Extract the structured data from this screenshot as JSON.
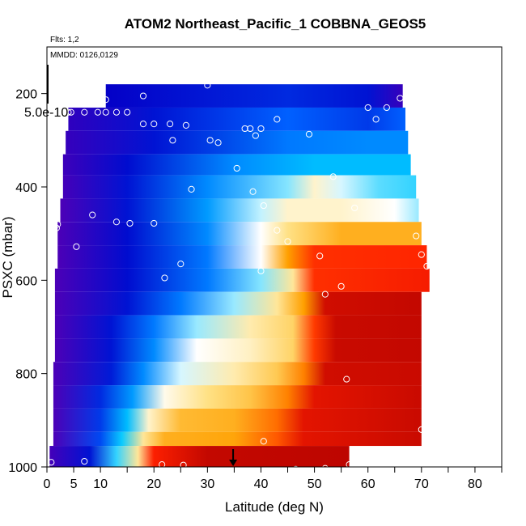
{
  "chart_data": {
    "type": "heatmap",
    "title": "ATOM2 Northeast_Pacific_1 COBBNA_GEOS5",
    "flights_label": "Flts: 1,2",
    "dates_label": "MMDD: 0126,0129",
    "xlabel": "Latitude (deg N)",
    "ylabel": "PSXC (mbar)",
    "xlim": [
      0,
      85
    ],
    "ylim": [
      1000,
      100
    ],
    "x_ticks": [
      0,
      5,
      10,
      20,
      30,
      40,
      50,
      60,
      70,
      80
    ],
    "x_minor_ticks": [
      15,
      25,
      35,
      45,
      55,
      65,
      75,
      85
    ],
    "y_ticks": [
      200,
      400,
      600,
      800,
      1000
    ],
    "colorbar_label": "5.0e-10",
    "arrow_latitude": 34.8,
    "colormap": [
      "#5a00b4",
      "#0000c8",
      "#0060ff",
      "#00c8ff",
      "#ffffff",
      "#ffe080",
      "#ffa000",
      "#ff2000",
      "#b00000"
    ],
    "pressure_bands": [
      {
        "p_top": 180,
        "p_bot": 230,
        "lat_start": 11,
        "lat_end": 66.5,
        "color_stops": [
          [
            0,
            0.12
          ],
          [
            45,
            0.18
          ],
          [
            60,
            0.15
          ],
          [
            66.5,
            0.05
          ]
        ]
      },
      {
        "p_top": 230,
        "p_bot": 280,
        "lat_start": 4,
        "lat_end": 67,
        "color_stops": [
          [
            4,
            0.06
          ],
          [
            20,
            0.15
          ],
          [
            45,
            0.25
          ],
          [
            60,
            0.2
          ],
          [
            67,
            0.25
          ]
        ]
      },
      {
        "p_top": 280,
        "p_bot": 330,
        "lat_start": 3.5,
        "lat_end": 67.5,
        "color_stops": [
          [
            3.5,
            0.05
          ],
          [
            20,
            0.15
          ],
          [
            45,
            0.28
          ],
          [
            60,
            0.3
          ],
          [
            67.5,
            0.3
          ]
        ]
      },
      {
        "p_top": 330,
        "p_bot": 375,
        "lat_start": 3,
        "lat_end": 68,
        "color_stops": [
          [
            3,
            0.04
          ],
          [
            15,
            0.14
          ],
          [
            35,
            0.3
          ],
          [
            50,
            0.36
          ],
          [
            68,
            0.36
          ]
        ]
      },
      {
        "p_top": 375,
        "p_bot": 425,
        "lat_start": 3,
        "lat_end": 69,
        "color_stops": [
          [
            3,
            0.03
          ],
          [
            15,
            0.15
          ],
          [
            30,
            0.3
          ],
          [
            45,
            0.44
          ],
          [
            50,
            0.55
          ],
          [
            55,
            0.48
          ],
          [
            62,
            0.42
          ],
          [
            69,
            0.4
          ]
        ]
      },
      {
        "p_top": 425,
        "p_bot": 475,
        "lat_start": 2.5,
        "lat_end": 69.5,
        "color_stops": [
          [
            2.5,
            0.02
          ],
          [
            15,
            0.15
          ],
          [
            30,
            0.32
          ],
          [
            40,
            0.47
          ],
          [
            45,
            0.55
          ],
          [
            55,
            0.55
          ],
          [
            65,
            0.5
          ],
          [
            69.5,
            0.45
          ]
        ]
      },
      {
        "p_top": 475,
        "p_bot": 525,
        "lat_start": 2,
        "lat_end": 70,
        "color_stops": [
          [
            2,
            0.02
          ],
          [
            15,
            0.14
          ],
          [
            30,
            0.3
          ],
          [
            40,
            0.5
          ],
          [
            45,
            0.62
          ],
          [
            55,
            0.72
          ],
          [
            70,
            0.72
          ]
        ]
      },
      {
        "p_top": 525,
        "p_bot": 575,
        "lat_start": 2,
        "lat_end": 71,
        "color_stops": [
          [
            2,
            0.02
          ],
          [
            15,
            0.14
          ],
          [
            30,
            0.28
          ],
          [
            40,
            0.5
          ],
          [
            45,
            0.75
          ],
          [
            50,
            0.86
          ],
          [
            71,
            0.87
          ]
        ]
      },
      {
        "p_top": 575,
        "p_bot": 625,
        "lat_start": 1.5,
        "lat_end": 71.5,
        "color_stops": [
          [
            1.5,
            0.02
          ],
          [
            15,
            0.14
          ],
          [
            30,
            0.28
          ],
          [
            40,
            0.44
          ],
          [
            46,
            0.6
          ],
          [
            50,
            0.86
          ],
          [
            71.5,
            0.89
          ]
        ]
      },
      {
        "p_top": 625,
        "p_bot": 675,
        "lat_start": 1.5,
        "lat_end": 70,
        "color_stops": [
          [
            1.5,
            0.02
          ],
          [
            15,
            0.15
          ],
          [
            25,
            0.28
          ],
          [
            35,
            0.45
          ],
          [
            43,
            0.6
          ],
          [
            48,
            0.75
          ],
          [
            52,
            0.95
          ],
          [
            70,
            0.97
          ]
        ]
      },
      {
        "p_top": 675,
        "p_bot": 725,
        "lat_start": 1.5,
        "lat_end": 70,
        "color_stops": [
          [
            1.5,
            0.02
          ],
          [
            12,
            0.15
          ],
          [
            20,
            0.28
          ],
          [
            28,
            0.45
          ],
          [
            38,
            0.58
          ],
          [
            46,
            0.65
          ],
          [
            50,
            0.85
          ],
          [
            54,
            0.96
          ],
          [
            70,
            0.97
          ]
        ]
      },
      {
        "p_top": 725,
        "p_bot": 775,
        "lat_start": 1.5,
        "lat_end": 70,
        "color_stops": [
          [
            1.5,
            0.02
          ],
          [
            12,
            0.15
          ],
          [
            20,
            0.3
          ],
          [
            28,
            0.5
          ],
          [
            38,
            0.56
          ],
          [
            46,
            0.65
          ],
          [
            50,
            0.85
          ],
          [
            54,
            0.96
          ],
          [
            70,
            0.97
          ]
        ]
      },
      {
        "p_top": 775,
        "p_bot": 825,
        "lat_start": 1.2,
        "lat_end": 70,
        "color_stops": [
          [
            1.2,
            0.02
          ],
          [
            12,
            0.16
          ],
          [
            18,
            0.3
          ],
          [
            25,
            0.48
          ],
          [
            35,
            0.58
          ],
          [
            43,
            0.67
          ],
          [
            48,
            0.78
          ],
          [
            52,
            0.95
          ],
          [
            70,
            0.96
          ]
        ]
      },
      {
        "p_top": 825,
        "p_bot": 875,
        "lat_start": 1.2,
        "lat_end": 70,
        "color_stops": [
          [
            1.2,
            0.02
          ],
          [
            10,
            0.18
          ],
          [
            16,
            0.32
          ],
          [
            22,
            0.52
          ],
          [
            30,
            0.62
          ],
          [
            38,
            0.68
          ],
          [
            45,
            0.78
          ],
          [
            50,
            0.92
          ],
          [
            70,
            0.96
          ]
        ]
      },
      {
        "p_top": 875,
        "p_bot": 925,
        "lat_start": 1.2,
        "lat_end": 70,
        "color_stops": [
          [
            1.2,
            0.02
          ],
          [
            10,
            0.2
          ],
          [
            15,
            0.36
          ],
          [
            19,
            0.55
          ],
          [
            25,
            0.7
          ],
          [
            35,
            0.72
          ],
          [
            43,
            0.8
          ],
          [
            48,
            0.92
          ],
          [
            70,
            0.96
          ]
        ]
      },
      {
        "p_top": 925,
        "p_bot": 955,
        "lat_start": 1.2,
        "lat_end": 70,
        "color_stops": [
          [
            1.2,
            0.02
          ],
          [
            10,
            0.22
          ],
          [
            14,
            0.38
          ],
          [
            18,
            0.6
          ],
          [
            22,
            0.72
          ],
          [
            35,
            0.74
          ],
          [
            43,
            0.82
          ],
          [
            48,
            0.92
          ],
          [
            70,
            0.96
          ]
        ]
      },
      {
        "p_top": 955,
        "p_bot": 1000,
        "lat_start": 0.5,
        "lat_end": 56.5,
        "color_stops": [
          [
            0.5,
            0.03
          ],
          [
            8,
            0.15
          ],
          [
            13,
            0.4
          ],
          [
            17,
            0.6
          ],
          [
            20,
            0.88
          ],
          [
            30,
            0.97
          ],
          [
            56.5,
            0.98
          ]
        ]
      }
    ],
    "observations": [
      {
        "lat": 11,
        "p": 213
      },
      {
        "lat": 18,
        "p": 205
      },
      {
        "lat": 30,
        "p": 182
      },
      {
        "lat": 4,
        "p": 240
      },
      {
        "lat": 4.5,
        "p": 240
      },
      {
        "lat": 7,
        "p": 240
      },
      {
        "lat": 9.5,
        "p": 240
      },
      {
        "lat": 11,
        "p": 240
      },
      {
        "lat": 13,
        "p": 240
      },
      {
        "lat": 15,
        "p": 240
      },
      {
        "lat": 18,
        "p": 265
      },
      {
        "lat": 20,
        "p": 265
      },
      {
        "lat": 23,
        "p": 265
      },
      {
        "lat": 26,
        "p": 268
      },
      {
        "lat": 23.5,
        "p": 300
      },
      {
        "lat": 30.5,
        "p": 300
      },
      {
        "lat": 32,
        "p": 305
      },
      {
        "lat": 37,
        "p": 275
      },
      {
        "lat": 38,
        "p": 275
      },
      {
        "lat": 40,
        "p": 275
      },
      {
        "lat": 39,
        "p": 290
      },
      {
        "lat": 43,
        "p": 255
      },
      {
        "lat": 49,
        "p": 287
      },
      {
        "lat": 60,
        "p": 230
      },
      {
        "lat": 61.5,
        "p": 255
      },
      {
        "lat": 63.5,
        "p": 230
      },
      {
        "lat": 66,
        "p": 210
      },
      {
        "lat": 35.5,
        "p": 360
      },
      {
        "lat": 27,
        "p": 405
      },
      {
        "lat": 38.5,
        "p": 410
      },
      {
        "lat": 40.5,
        "p": 440
      },
      {
        "lat": 53.5,
        "p": 378
      },
      {
        "lat": 57.5,
        "p": 445
      },
      {
        "lat": 8.5,
        "p": 460
      },
      {
        "lat": 13,
        "p": 475
      },
      {
        "lat": 15.5,
        "p": 478
      },
      {
        "lat": 20,
        "p": 478
      },
      {
        "lat": 2,
        "p": 480
      },
      {
        "lat": 1.8,
        "p": 488
      },
      {
        "lat": 5.5,
        "p": 528
      },
      {
        "lat": 43,
        "p": 493
      },
      {
        "lat": 45,
        "p": 517
      },
      {
        "lat": 51,
        "p": 548
      },
      {
        "lat": 69,
        "p": 505
      },
      {
        "lat": 70,
        "p": 545
      },
      {
        "lat": 71,
        "p": 570
      },
      {
        "lat": 25,
        "p": 565
      },
      {
        "lat": 22,
        "p": 595
      },
      {
        "lat": 40,
        "p": 580
      },
      {
        "lat": 52,
        "p": 630
      },
      {
        "lat": 55,
        "p": 613
      },
      {
        "lat": 56,
        "p": 812
      },
      {
        "lat": 70,
        "p": 920
      },
      {
        "lat": 40.5,
        "p": 945
      },
      {
        "lat": 0.8,
        "p": 990
      },
      {
        "lat": 7,
        "p": 988
      },
      {
        "lat": 21.5,
        "p": 995
      },
      {
        "lat": 25.5,
        "p": 996
      },
      {
        "lat": 46.5,
        "p": 1005
      },
      {
        "lat": 52,
        "p": 1003
      },
      {
        "lat": 56.5,
        "p": 995
      }
    ]
  }
}
